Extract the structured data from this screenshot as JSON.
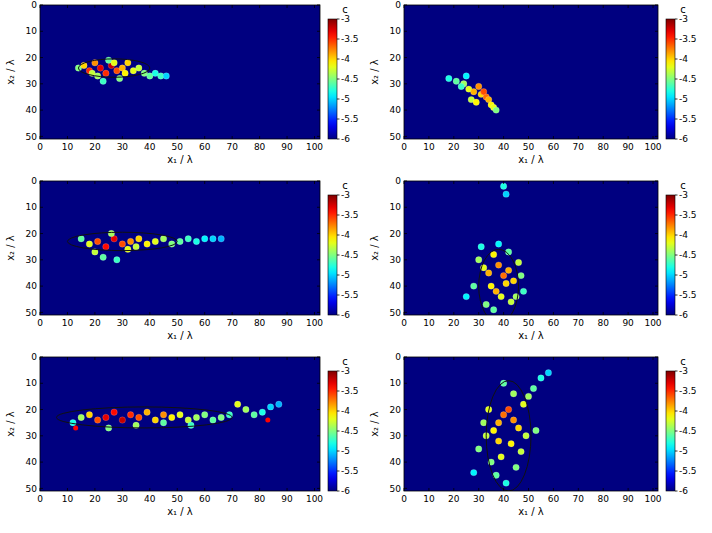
{
  "chart_data": [
    {
      "type": "heatmap",
      "xlabel": "x₁ / λ",
      "ylabel": "x₂ / λ",
      "colorbar_title": "c",
      "xlim": [
        0,
        102
      ],
      "ylim": [
        51,
        0
      ],
      "xticks": [
        0,
        10,
        20,
        30,
        40,
        50,
        60,
        70,
        80,
        90,
        100
      ],
      "yticks": [
        0,
        10,
        20,
        30,
        40,
        50
      ],
      "clim": [
        -6,
        -3
      ],
      "cticks": [
        -6,
        -5.5,
        -5,
        -4.5,
        -4,
        -3.5,
        -3
      ],
      "grid": false,
      "plume": {
        "x": [
          14,
          16,
          18,
          20,
          22,
          24,
          26,
          28,
          30,
          32,
          34,
          36,
          38,
          40,
          42,
          44,
          46,
          21,
          25,
          29,
          23,
          27,
          31,
          19
        ],
        "y": [
          24,
          23,
          25,
          22,
          24,
          26,
          23,
          25,
          24,
          22,
          25,
          24,
          26,
          27,
          26,
          27,
          27,
          27,
          21,
          28,
          29,
          22,
          26,
          26
        ],
        "c": [
          -4.5,
          -4,
          -3.5,
          -3.8,
          -3.3,
          -3.5,
          -3.2,
          -3.6,
          -3.9,
          -4,
          -4.2,
          -4.3,
          -4.5,
          -4.6,
          -4.8,
          -4.7,
          -5,
          -4.4,
          -4.6,
          -4.5,
          -4.7,
          -4.2,
          -4.1,
          -4.3
        ]
      },
      "ellipse": {
        "cx": 27,
        "cy": 24,
        "rx": 13,
        "ry": 3.5
      }
    },
    {
      "type": "heatmap",
      "xlabel": "x₁ / λ",
      "ylabel": "x₂ / λ",
      "colorbar_title": "c",
      "xlim": [
        0,
        102
      ],
      "ylim": [
        51,
        0
      ],
      "xticks": [
        0,
        10,
        20,
        30,
        40,
        50,
        60,
        70,
        80,
        90,
        100
      ],
      "yticks": [
        0,
        10,
        20,
        30,
        40,
        50
      ],
      "clim": [
        -6,
        -3
      ],
      "cticks": [
        -6,
        -5.5,
        -5,
        -4.5,
        -4,
        -3.5,
        -3
      ],
      "grid": false,
      "plume": {
        "x": [
          18,
          21,
          24,
          26,
          28,
          30,
          31,
          33,
          34,
          35,
          36,
          37,
          27,
          29,
          32,
          25,
          23
        ],
        "y": [
          28,
          29,
          30,
          32,
          33,
          31,
          34,
          35,
          36,
          38,
          39,
          40,
          36,
          37,
          33,
          27,
          31
        ],
        "c": [
          -4.8,
          -4.6,
          -4.4,
          -4.2,
          -3.9,
          -3.8,
          -4,
          -3.7,
          -3.9,
          -4.1,
          -4.2,
          -4.5,
          -4.3,
          -4.1,
          -3.6,
          -4.9,
          -4.7
        ]
      }
    },
    {
      "type": "heatmap",
      "xlabel": "x₁ / λ",
      "ylabel": "x₂ / λ",
      "colorbar_title": "c",
      "xlim": [
        0,
        102
      ],
      "ylim": [
        51,
        0
      ],
      "xticks": [
        0,
        10,
        20,
        30,
        40,
        50,
        60,
        70,
        80,
        90,
        100
      ],
      "yticks": [
        0,
        10,
        20,
        30,
        40,
        50
      ],
      "clim": [
        -6,
        -3
      ],
      "cticks": [
        -6,
        -5.5,
        -5,
        -4.5,
        -4,
        -3.5,
        -3
      ],
      "grid": false,
      "plume": {
        "x": [
          15,
          18,
          21,
          24,
          27,
          30,
          33,
          36,
          39,
          42,
          45,
          48,
          51,
          54,
          57,
          60,
          63,
          66,
          20,
          26,
          32,
          28,
          23,
          35
        ],
        "y": [
          22,
          24,
          23,
          25,
          22,
          24,
          23,
          22,
          24,
          23,
          22,
          24,
          23,
          22,
          23,
          22,
          22,
          22,
          27,
          20,
          26,
          30,
          29,
          25
        ],
        "c": [
          -4.6,
          -4.2,
          -3.6,
          -3.4,
          -3.3,
          -3.6,
          -3.8,
          -4,
          -4.1,
          -4.2,
          -4.4,
          -4.5,
          -4.6,
          -4.7,
          -4.8,
          -4.9,
          -5,
          -5.1,
          -4.3,
          -4.4,
          -4.2,
          -4.7,
          -4.6,
          -4.3
        ]
      },
      "ellipse": {
        "cx": 30,
        "cy": 23,
        "rx": 20,
        "ry": 3.5
      }
    },
    {
      "type": "heatmap",
      "xlabel": "x₁ / λ",
      "ylabel": "x₂ / λ",
      "colorbar_title": "c",
      "xlim": [
        0,
        102
      ],
      "ylim": [
        51,
        0
      ],
      "xticks": [
        0,
        10,
        20,
        30,
        40,
        50,
        60,
        70,
        80,
        90,
        100
      ],
      "yticks": [
        0,
        10,
        20,
        30,
        40,
        50
      ],
      "clim": [
        -6,
        -3
      ],
      "cticks": [
        -6,
        -5.5,
        -5,
        -4.5,
        -4,
        -3.5,
        -3
      ],
      "grid": false,
      "plume": {
        "x": [
          30,
          32,
          34,
          36,
          38,
          40,
          42,
          44,
          46,
          35,
          37,
          39,
          41,
          43,
          28,
          33,
          45,
          48,
          31,
          38,
          42,
          36,
          40,
          25,
          47,
          41
        ],
        "y": [
          30,
          33,
          35,
          28,
          32,
          36,
          34,
          38,
          31,
          40,
          42,
          44,
          39,
          46,
          40,
          47,
          44,
          42,
          25,
          24,
          27,
          49,
          2,
          44,
          36,
          5
        ],
        "c": [
          -4.4,
          -4.2,
          -3.9,
          -4.1,
          -3.8,
          -3.7,
          -3.9,
          -4,
          -4.3,
          -4.1,
          -3.9,
          -4.2,
          -4,
          -4.3,
          -4.6,
          -4.5,
          -4.4,
          -4.7,
          -4.8,
          -4.9,
          -4.6,
          -4.6,
          -4.8,
          -4.9,
          -4.5,
          -5
        ]
      },
      "ellipse": {
        "cx": 38,
        "cy": 40,
        "rx": 8,
        "ry": 14
      }
    },
    {
      "type": "heatmap",
      "xlabel": "x₁ / λ",
      "ylabel": "x₂ / λ",
      "colorbar_title": "c",
      "xlim": [
        0,
        102
      ],
      "ylim": [
        51,
        0
      ],
      "xticks": [
        0,
        10,
        20,
        30,
        40,
        50,
        60,
        70,
        80,
        90,
        100
      ],
      "yticks": [
        0,
        10,
        20,
        30,
        40,
        50
      ],
      "clim": [
        -6,
        -3
      ],
      "cticks": [
        -6,
        -5.5,
        -5,
        -4.5,
        -4,
        -3.5,
        -3
      ],
      "grid": false,
      "plume": {
        "x": [
          12,
          15,
          18,
          21,
          24,
          27,
          30,
          33,
          36,
          39,
          42,
          45,
          48,
          51,
          54,
          57,
          60,
          63,
          66,
          69,
          72,
          75,
          78,
          81,
          84,
          87,
          25,
          35,
          45,
          55
        ],
        "y": [
          25,
          23,
          22,
          24,
          23,
          21,
          24,
          22,
          23,
          21,
          24,
          22,
          23,
          22,
          24,
          23,
          22,
          24,
          23,
          22,
          18,
          20,
          22,
          21,
          19,
          18,
          27,
          26,
          25,
          26
        ],
        "c": [
          -4.8,
          -4.4,
          -4,
          -3.6,
          -3.3,
          -3.4,
          -3.2,
          -3.5,
          -3.6,
          -3.9,
          -4,
          -3.8,
          -4.1,
          -4.2,
          -4.3,
          -4.4,
          -4.5,
          -4.6,
          -4.5,
          -4.7,
          -4.2,
          -4.4,
          -4.6,
          -4.8,
          -5,
          -5.1,
          -4.5,
          -4.4,
          -4.6,
          -4.7
        ]
      },
      "ellipse": {
        "cx": 38,
        "cy": 23,
        "rx": 32,
        "ry": 4
      },
      "markers": {
        "x": [
          13,
          83
        ],
        "y": [
          27,
          24
        ],
        "color": "#ff0000"
      }
    },
    {
      "type": "heatmap",
      "xlabel": "x₁ / λ",
      "ylabel": "x₂ / λ",
      "colorbar_title": "c",
      "xlim": [
        0,
        102
      ],
      "ylim": [
        51,
        0
      ],
      "xticks": [
        0,
        10,
        20,
        30,
        40,
        50,
        60,
        70,
        80,
        90,
        100
      ],
      "yticks": [
        0,
        10,
        20,
        30,
        40,
        50
      ],
      "clim": [
        -6,
        -3
      ],
      "cticks": [
        -6,
        -5.5,
        -5,
        -4.5,
        -4,
        -3.5,
        -3
      ],
      "grid": false,
      "plume": {
        "x": [
          30,
          33,
          36,
          38,
          40,
          42,
          44,
          46,
          48,
          50,
          35,
          39,
          43,
          47,
          52,
          55,
          58,
          37,
          41,
          45,
          28,
          32,
          49,
          53,
          40,
          44,
          38,
          34
        ],
        "y": [
          35,
          30,
          28,
          25,
          22,
          20,
          24,
          27,
          18,
          15,
          40,
          38,
          33,
          36,
          12,
          8,
          6,
          45,
          48,
          42,
          44,
          25,
          30,
          28,
          10,
          14,
          32,
          20
        ],
        "c": [
          -4.5,
          -4.3,
          -4.1,
          -3.9,
          -3.7,
          -3.6,
          -3.8,
          -4,
          -4.2,
          -4.4,
          -4.5,
          -4.2,
          -4.1,
          -4.3,
          -4.6,
          -4.8,
          -5,
          -4.6,
          -4.8,
          -4.5,
          -4.9,
          -4.4,
          -4.3,
          -4.5,
          -4.6,
          -4.4,
          -4,
          -4.2
        ]
      },
      "ellipse": {
        "cx": 42,
        "cy": 30,
        "rx": 9,
        "ry": 21
      }
    }
  ]
}
